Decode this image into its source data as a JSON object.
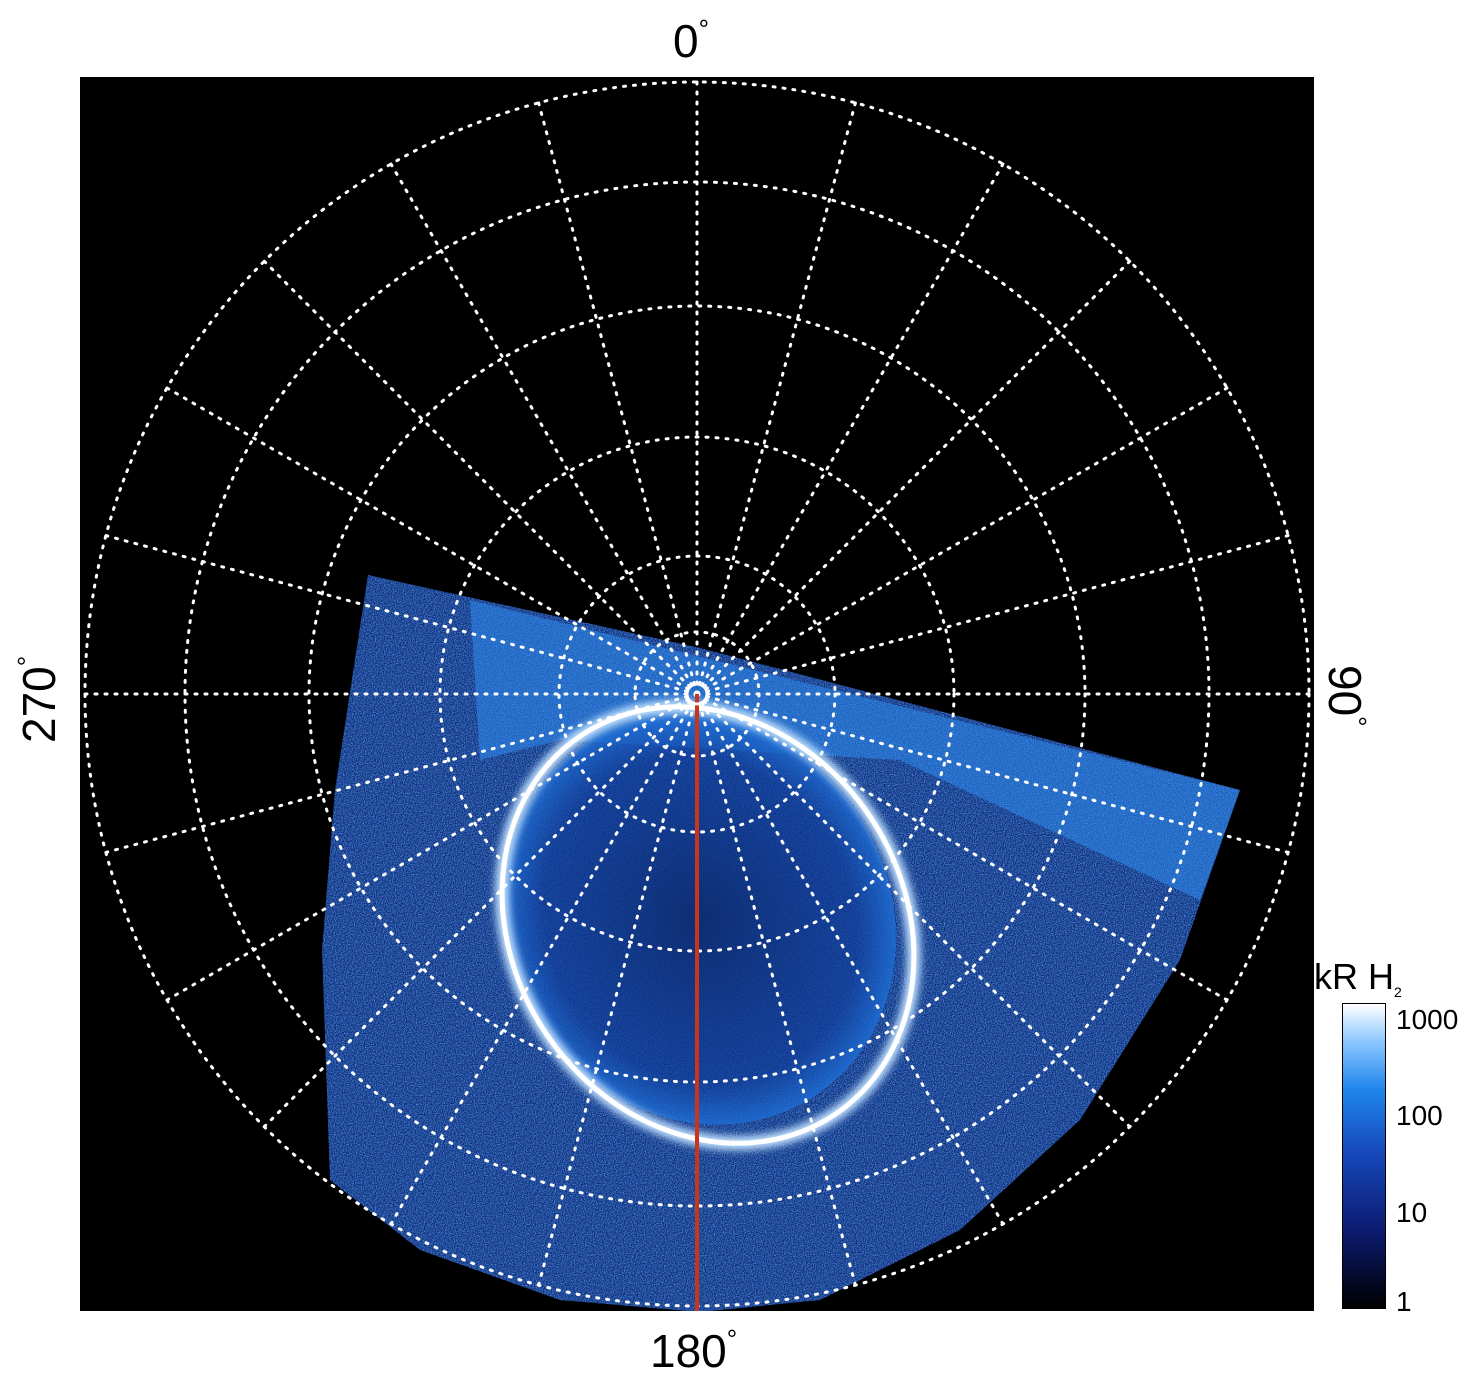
{
  "figure": {
    "direction_labels": {
      "top": "0",
      "right": "90",
      "bottom": "180",
      "left": "270",
      "degree_symbol": "°"
    },
    "colorbar": {
      "title_main": "kR H",
      "title_sub": "2",
      "scale": "log",
      "ticks": [
        "1000",
        "100",
        "10",
        "1"
      ],
      "range": [
        1,
        1500
      ]
    },
    "colors": {
      "background": "#000000",
      "grid": "#ffffff",
      "meridian_line": "#c8341c",
      "aurora_low": "#0a1a5a",
      "aurora_mid": "#1e7fe6",
      "aurora_high": "#f2f8ff"
    },
    "grid": {
      "style": "dotted",
      "meridian_step_deg": 15
    }
  }
}
